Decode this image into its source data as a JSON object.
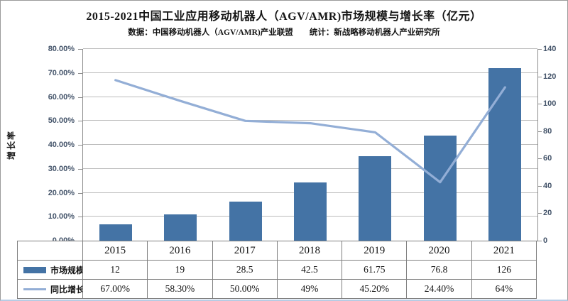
{
  "chart_data": {
    "type": "combo",
    "title": "2015-2021中国工业应用移动机器人（AGV/AMR)市场规模与增长率（亿元）",
    "subtitle": "数据：中国移动机器人（AGV/AMR)产业联盟　　统计：新战略移动机器人产业研究所",
    "categories": [
      "2015",
      "2016",
      "2017",
      "2018",
      "2019",
      "2020",
      "2021"
    ],
    "series": [
      {
        "name": "市场规模",
        "type": "bar",
        "axis": "right",
        "color": "#4473A5",
        "values": [
          12,
          19,
          28.5,
          42.5,
          61.75,
          76.8,
          126
        ],
        "display": [
          "12",
          "19",
          "28.5",
          "42.5",
          "61.75",
          "76.8",
          "126"
        ]
      },
      {
        "name": "同比增长率",
        "type": "line",
        "axis": "left",
        "color": "#93AED6",
        "values_percent": [
          67.0,
          58.3,
          50.0,
          49.0,
          45.2,
          24.4,
          64.0
        ],
        "display": [
          "67.00%",
          "58.30%",
          "50.00%",
          "49%",
          "45.20%",
          "24.40%",
          "64%"
        ]
      }
    ],
    "left_axis": {
      "label": "增长率",
      "min": 0,
      "max": 80,
      "step": 10,
      "suffix": "%",
      "decimals": 2
    },
    "right_axis": {
      "min": 0,
      "max": 140,
      "step": 20
    },
    "grid": true,
    "legend_position": "table-left"
  },
  "style": {
    "bar_color": "#4473A5",
    "line_color": "#93AED6",
    "grid_color": "#bcbcbc",
    "axis_text_color": "#44546a",
    "table_border_color": "#7f7f7f"
  }
}
